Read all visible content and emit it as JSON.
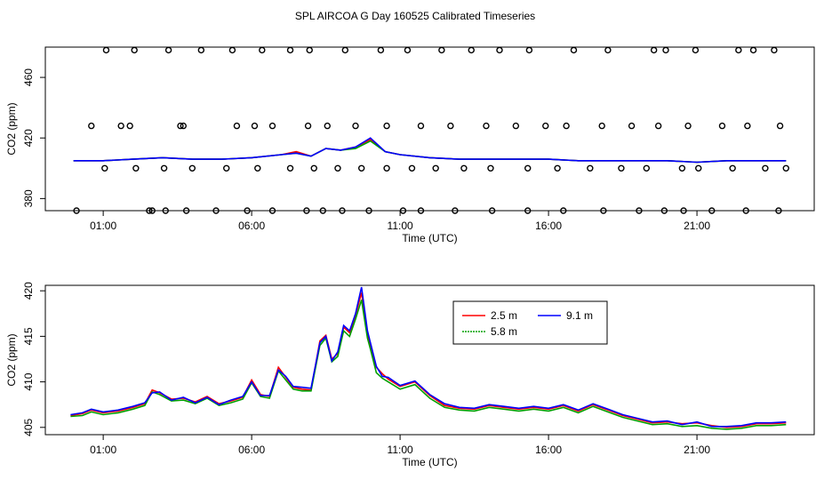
{
  "title": "SPL AIRCOA G  Day 160525  Calibrated Timeseries",
  "chart_data": [
    {
      "type": "line+scatter",
      "xlabel": "Time (UTC)",
      "ylabel": "CO2 (ppm)",
      "x_ticks": [
        "01:00",
        "06:00",
        "11:00",
        "16:00",
        "21:00"
      ],
      "x_tick_hours": [
        1,
        6,
        11,
        16,
        21
      ],
      "y_ticks": [
        380,
        420,
        460
      ],
      "ylim": [
        372,
        480
      ],
      "xlim": [
        -0.95,
        24.95
      ],
      "series": [
        {
          "name": "2.5 m",
          "color": "#ff0000",
          "x": [
            0,
            1,
            2,
            3,
            4,
            5,
            6,
            7,
            7.5,
            8,
            8.5,
            9,
            9.5,
            10,
            10.5,
            11,
            12,
            13,
            14,
            15,
            16,
            17,
            18,
            19,
            20,
            21,
            22,
            23,
            24
          ],
          "values": [
            405,
            405,
            406,
            407,
            406,
            406,
            407,
            409,
            411,
            408,
            413,
            412,
            414,
            419,
            411,
            409,
            407,
            406,
            406,
            406,
            406,
            405,
            405,
            405,
            405,
            404,
            405,
            405,
            405
          ]
        },
        {
          "name": "5.8 m",
          "color": "#00a000",
          "x": [
            0,
            1,
            2,
            3,
            4,
            5,
            6,
            7,
            7.5,
            8,
            8.5,
            9,
            9.5,
            10,
            10.5,
            11,
            12,
            13,
            14,
            15,
            16,
            17,
            18,
            19,
            20,
            21,
            22,
            23,
            24
          ],
          "values": [
            405,
            405,
            406,
            407,
            406,
            406,
            407,
            409,
            410,
            408,
            413,
            412,
            413,
            418,
            411,
            409,
            407,
            406,
            406,
            406,
            406,
            405,
            405,
            405,
            405,
            404,
            405,
            405,
            405
          ]
        },
        {
          "name": "9.1 m",
          "color": "#0000ff",
          "x": [
            0,
            1,
            2,
            3,
            4,
            5,
            6,
            7,
            7.5,
            8,
            8.5,
            9,
            9.5,
            10,
            10.5,
            11,
            12,
            13,
            14,
            15,
            16,
            17,
            18,
            19,
            20,
            21,
            22,
            23,
            24
          ],
          "values": [
            405,
            405,
            406,
            407,
            406,
            406,
            407,
            409,
            410,
            408,
            413,
            412,
            414,
            420,
            411,
            409,
            407,
            406,
            406,
            406,
            406,
            405,
            405,
            405,
            405,
            404,
            405,
            405,
            405
          ]
        }
      ],
      "markers": {
        "style": "open-circle",
        "x": [
          1.05,
          2.1,
          3.05,
          4.0,
          5.15,
          6.2,
          7.3,
          8.1,
          8.9,
          9.7,
          10.55,
          11.4,
          12.2,
          13.15,
          14.05,
          15.3,
          16.3,
          17.4,
          18.45,
          19.3,
          20.5,
          21.05,
          22.2,
          23.3,
          24.0,
          0.1,
          2.65,
          2.55,
          3.8,
          3.1,
          4.8,
          5.85,
          6.7,
          7.85,
          8.4,
          9.05,
          9.95,
          11.1,
          11.7,
          12.85,
          14.1,
          15.3,
          16.5,
          17.85,
          19.05,
          19.9,
          20.55,
          21.5,
          22.65,
          23.75,
          0.6,
          1.6,
          1.9,
          3.6,
          3.7,
          5.5,
          6.1,
          6.7,
          7.9,
          8.55,
          9.5,
          10.55,
          11.7,
          12.7,
          13.9,
          14.9,
          15.9,
          16.6,
          17.8,
          18.8,
          19.7,
          20.7,
          21.85,
          22.7,
          23.8
        ],
        "values": [
          400,
          400,
          400,
          400,
          400,
          400,
          400,
          400,
          400,
          400,
          400,
          400,
          400,
          400,
          400,
          400,
          400,
          400,
          400,
          400,
          400,
          400,
          400,
          400,
          400,
          372,
          372,
          372,
          372,
          372,
          372,
          372,
          372,
          372,
          372,
          372,
          372,
          372,
          372,
          372,
          372,
          372,
          372,
          372,
          372,
          372,
          372,
          372,
          372,
          372,
          428,
          428,
          428,
          428,
          428,
          428,
          428,
          428,
          428,
          428,
          428,
          428,
          428,
          428,
          428,
          428,
          428,
          428,
          428,
          428,
          428,
          428,
          428,
          428,
          428
        ]
      },
      "markers_top": {
        "x": [
          1.1,
          2.05,
          3.2,
          4.3,
          5.35,
          6.35,
          7.3,
          7.95,
          9.15,
          10.35,
          11.25,
          12.4,
          13.4,
          14.35,
          15.35,
          16.85,
          18.0,
          19.55,
          19.95,
          20.95,
          22.4,
          22.9,
          23.6
        ],
        "value": 478
      }
    },
    {
      "type": "line",
      "xlabel": "Time (UTC)",
      "ylabel": "CO2 (ppm)",
      "x_ticks": [
        "01:00",
        "06:00",
        "11:00",
        "16:00",
        "21:00"
      ],
      "x_tick_hours": [
        1,
        6,
        11,
        16,
        21
      ],
      "y_ticks": [
        405,
        410,
        415,
        420
      ],
      "ylim": [
        404.2,
        420.6
      ],
      "xlim": [
        -0.95,
        24.95
      ],
      "legend": {
        "position": "top-right",
        "entries": [
          "2.5 m",
          "5.8 m",
          "9.1 m"
        ]
      },
      "series": [
        {
          "name": "2.5 m",
          "color": "#ff0000",
          "x": [
            -0.1,
            0.3,
            0.6,
            1.0,
            1.5,
            2.0,
            2.4,
            2.65,
            2.9,
            3.3,
            3.7,
            4.1,
            4.5,
            4.9,
            5.3,
            5.7,
            6.0,
            6.3,
            6.6,
            6.9,
            7.15,
            7.4,
            7.7,
            8.0,
            8.3,
            8.5,
            8.7,
            8.9,
            9.1,
            9.3,
            9.5,
            9.7,
            9.9,
            10.0,
            10.2,
            10.4,
            10.6,
            11.0,
            11.5,
            12.0,
            12.5,
            13.0,
            13.5,
            14.0,
            14.5,
            15.0,
            15.5,
            16.0,
            16.5,
            17.0,
            17.5,
            18.0,
            18.5,
            19.0,
            19.5,
            20.0,
            20.5,
            21.0,
            21.5,
            22.0,
            22.5,
            23.0,
            23.5,
            24.0
          ],
          "values": [
            406.3,
            406.5,
            406.9,
            406.6,
            406.8,
            407.2,
            407.6,
            409.1,
            408.8,
            408.1,
            408.2,
            407.8,
            408.4,
            407.6,
            407.9,
            408.3,
            410.2,
            408.6,
            408.4,
            411.6,
            410.5,
            409.4,
            409.2,
            409.1,
            414.5,
            415.1,
            412.5,
            413.1,
            416.0,
            415.4,
            417.3,
            419.8,
            415.2,
            414.0,
            411.6,
            410.9,
            410.3,
            409.5,
            410.0,
            408.5,
            407.4,
            407.1,
            407.0,
            407.4,
            407.2,
            407.0,
            407.2,
            407.0,
            407.4,
            406.8,
            407.5,
            406.9,
            406.3,
            405.9,
            405.5,
            405.6,
            405.4,
            405.5,
            405.2,
            405.0,
            405.1,
            405.4,
            405.4,
            405.5
          ]
        },
        {
          "name": "5.8 m",
          "color": "#00a000",
          "x": [
            -0.1,
            0.3,
            0.6,
            1.0,
            1.5,
            2.0,
            2.4,
            2.65,
            2.9,
            3.3,
            3.7,
            4.1,
            4.5,
            4.9,
            5.3,
            5.7,
            6.0,
            6.3,
            6.6,
            6.9,
            7.15,
            7.4,
            7.7,
            8.0,
            8.3,
            8.5,
            8.7,
            8.9,
            9.1,
            9.3,
            9.5,
            9.7,
            9.9,
            10.0,
            10.2,
            10.4,
            10.6,
            11.0,
            11.5,
            12.0,
            12.5,
            13.0,
            13.5,
            14.0,
            14.5,
            15.0,
            15.5,
            16.0,
            16.5,
            17.0,
            17.5,
            18.0,
            18.5,
            19.0,
            19.5,
            20.0,
            20.5,
            21.0,
            21.5,
            22.0,
            22.5,
            23.0,
            23.5,
            24.0
          ],
          "values": [
            406.2,
            406.3,
            406.7,
            406.4,
            406.6,
            407.0,
            407.4,
            408.9,
            408.6,
            407.9,
            408.0,
            407.6,
            408.2,
            407.4,
            407.7,
            408.1,
            409.9,
            408.4,
            408.2,
            411.2,
            410.2,
            409.2,
            409.0,
            409.0,
            414.0,
            414.8,
            412.2,
            412.8,
            415.6,
            415.0,
            416.9,
            419.0,
            414.8,
            413.6,
            411.0,
            410.4,
            410.0,
            409.2,
            409.7,
            408.2,
            407.2,
            406.9,
            406.8,
            407.2,
            407.0,
            406.8,
            407.0,
            406.8,
            407.2,
            406.6,
            407.3,
            406.7,
            406.1,
            405.7,
            405.3,
            405.4,
            405.1,
            405.2,
            404.9,
            404.8,
            404.9,
            405.2,
            405.2,
            405.3
          ]
        },
        {
          "name": "9.1 m",
          "color": "#0000ff",
          "x": [
            -0.1,
            0.3,
            0.6,
            1.0,
            1.5,
            2.0,
            2.4,
            2.65,
            2.9,
            3.3,
            3.7,
            4.1,
            4.5,
            4.9,
            5.3,
            5.7,
            6.0,
            6.3,
            6.6,
            6.9,
            7.15,
            7.4,
            7.7,
            8.0,
            8.3,
            8.5,
            8.7,
            8.9,
            9.1,
            9.3,
            9.5,
            9.7,
            9.9,
            10.0,
            10.2,
            10.4,
            10.6,
            11.0,
            11.5,
            12.0,
            12.5,
            13.0,
            13.5,
            14.0,
            14.5,
            15.0,
            15.5,
            16.0,
            16.5,
            17.0,
            17.5,
            18.0,
            18.5,
            19.0,
            19.5,
            20.0,
            20.5,
            21.0,
            21.5,
            22.0,
            22.5,
            23.0,
            23.5,
            24.0
          ],
          "values": [
            406.4,
            406.6,
            407.0,
            406.7,
            406.9,
            407.3,
            407.7,
            408.8,
            408.9,
            408.0,
            408.3,
            407.7,
            408.3,
            407.5,
            408.0,
            408.4,
            410.0,
            408.5,
            408.5,
            411.3,
            410.6,
            409.5,
            409.4,
            409.3,
            414.3,
            415.0,
            412.3,
            413.3,
            416.2,
            415.6,
            417.5,
            420.4,
            415.6,
            414.3,
            411.7,
            410.6,
            410.5,
            409.6,
            410.1,
            408.6,
            407.6,
            407.2,
            407.1,
            407.5,
            407.3,
            407.1,
            407.3,
            407.1,
            407.5,
            406.9,
            407.6,
            407.0,
            406.4,
            406.0,
            405.6,
            405.7,
            405.3,
            405.6,
            405.1,
            405.1,
            405.2,
            405.5,
            405.5,
            405.6
          ]
        }
      ]
    }
  ]
}
